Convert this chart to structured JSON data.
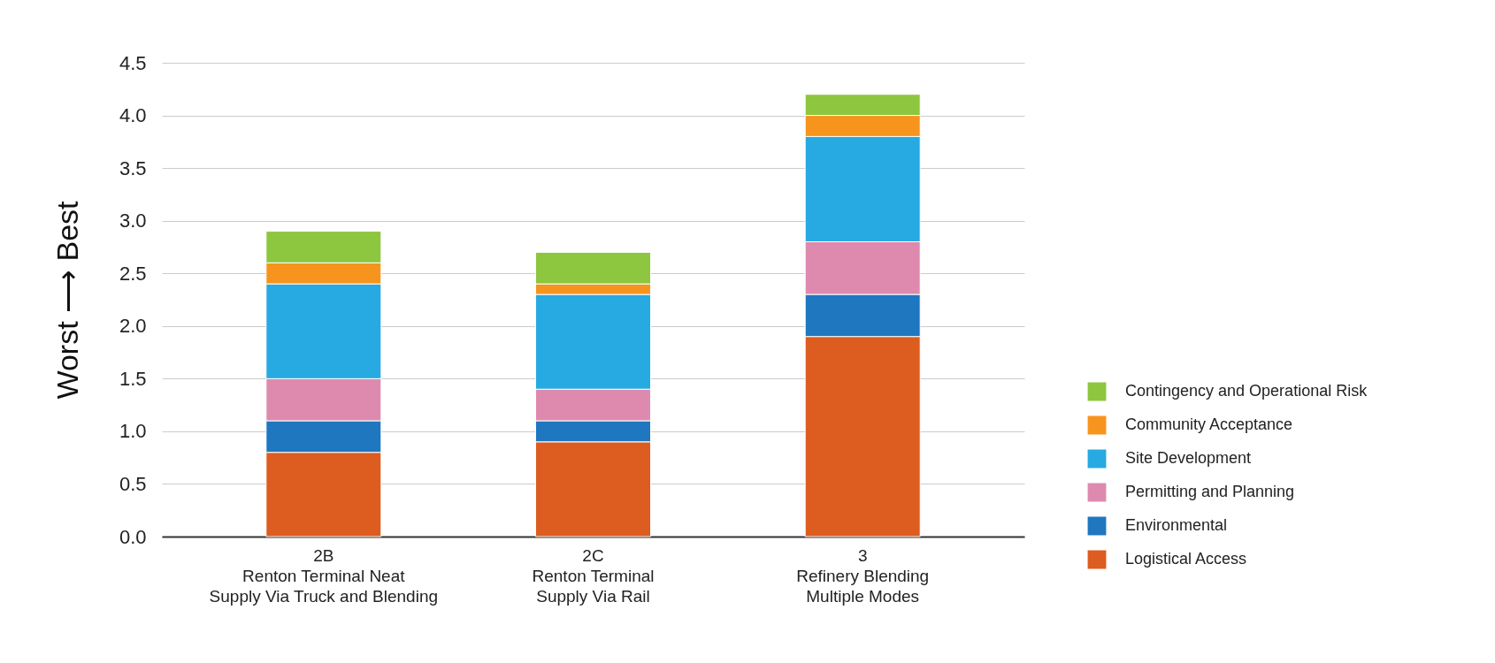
{
  "chart_data": {
    "type": "bar",
    "stacked": true,
    "ylabel": "Worst ⟶ Best",
    "categories": [
      "2B\nRenton Terminal Neat\nSupply Via Truck and Blending",
      "2C\nRenton Terminal\nSupply Via Rail",
      "3\nRefinery Blending\nMultiple Modes"
    ],
    "series": [
      {
        "name": "Logistical Access",
        "color": "#dd5c1f",
        "values": [
          0.8,
          0.9,
          1.9
        ]
      },
      {
        "name": "Environmental",
        "color": "#1f77c0",
        "values": [
          0.3,
          0.2,
          0.4
        ]
      },
      {
        "name": "Permitting and Planning",
        "color": "#de8aae",
        "values": [
          0.4,
          0.3,
          0.5
        ]
      },
      {
        "name": "Site Development",
        "color": "#26aae1",
        "values": [
          0.9,
          0.9,
          1.0
        ]
      },
      {
        "name": "Community Acceptance",
        "color": "#f7941d",
        "values": [
          0.2,
          0.1,
          0.2
        ]
      },
      {
        "name": "Contingency and Operational Risk",
        "color": "#8dc63f",
        "values": [
          0.3,
          0.3,
          0.2
        ]
      }
    ],
    "ylim": [
      0,
      4.5
    ],
    "yticks": [
      {
        "value": 0,
        "label": "0.0"
      },
      0.5,
      {
        "value": 1,
        "label": "1.0"
      },
      1.5,
      {
        "value": 2,
        "label": "2.0"
      },
      2.5,
      {
        "value": 3,
        "label": "3.0"
      },
      3.5,
      {
        "value": 4,
        "label": "4.0"
      },
      4.5
    ],
    "grid": "y",
    "legend": "right"
  }
}
